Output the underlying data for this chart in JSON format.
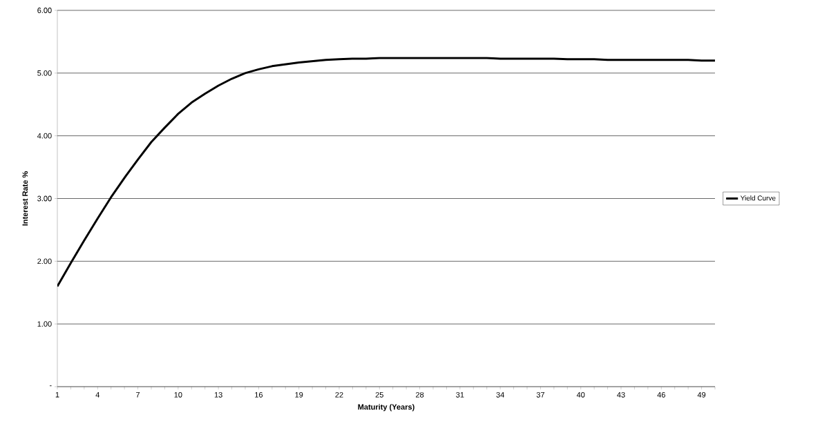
{
  "chart_data": {
    "type": "line",
    "xlabel": "Maturity (Years)",
    "ylabel": "Interest Rate %",
    "categories": [
      "1",
      null,
      null,
      "4",
      null,
      null,
      "7",
      null,
      null,
      "10",
      null,
      null,
      "13",
      null,
      null,
      "16",
      null,
      null,
      "19",
      null,
      null,
      "22",
      null,
      null,
      "25",
      null,
      null,
      "28",
      null,
      null,
      "31",
      null,
      null,
      "34",
      null,
      null,
      "37",
      null,
      null,
      "40",
      null,
      null,
      "43",
      null,
      null,
      "46",
      null,
      null,
      "49",
      null
    ],
    "series": [
      {
        "name": "Yield Curve",
        "color": "#000000",
        "values": [
          1.6,
          1.97,
          2.33,
          2.68,
          3.02,
          3.33,
          3.62,
          3.9,
          4.13,
          4.35,
          4.53,
          4.67,
          4.8,
          4.91,
          5.0,
          5.06,
          5.11,
          5.14,
          5.17,
          5.19,
          5.21,
          5.22,
          5.23,
          5.23,
          5.24,
          5.24,
          5.24,
          5.24,
          5.24,
          5.24,
          5.24,
          5.24,
          5.24,
          5.23,
          5.23,
          5.23,
          5.23,
          5.23,
          5.22,
          5.22,
          5.22,
          5.21,
          5.21,
          5.21,
          5.21,
          5.21,
          5.21,
          5.21,
          5.2,
          5.2
        ]
      }
    ],
    "ylim": [
      0,
      6
    ],
    "yticks": [
      {
        "value": 0,
        "label": "-"
      },
      {
        "value": 1,
        "label": "1.00"
      },
      {
        "value": 2,
        "label": "2.00"
      },
      {
        "value": 3,
        "label": "3.00"
      },
      {
        "value": 4,
        "label": "4.00"
      },
      {
        "value": 5,
        "label": "5.00"
      },
      {
        "value": 6,
        "label": "6.00"
      }
    ],
    "grid": "y",
    "legend": "right",
    "marker": "none",
    "line_style": "solid"
  }
}
